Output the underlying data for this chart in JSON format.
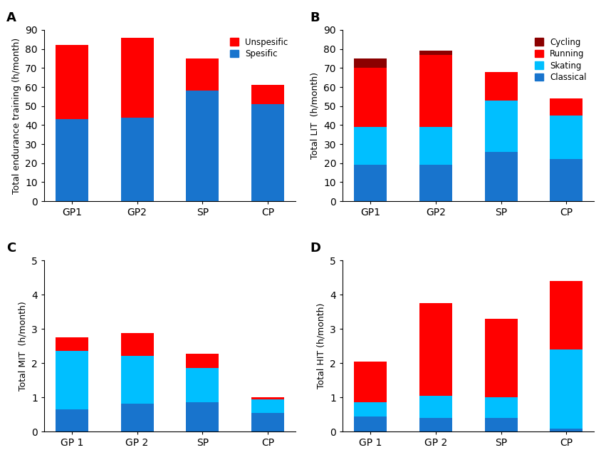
{
  "A": {
    "categories": [
      "GP1",
      "GP2",
      "SP",
      "CP"
    ],
    "specific": [
      43,
      44,
      58,
      51
    ],
    "unspecific": [
      39,
      42,
      17,
      10
    ],
    "ylabel": "Total endurance training (h/month)",
    "ylim": [
      0,
      90
    ],
    "yticks": [
      0,
      10,
      20,
      30,
      40,
      50,
      60,
      70,
      80,
      90
    ],
    "colors": {
      "specific": "#1874CD",
      "unspecific": "#FF0000"
    },
    "label": "A"
  },
  "B": {
    "categories": [
      "GP1",
      "GP2",
      "SP",
      "CP"
    ],
    "classical": [
      19,
      19,
      26,
      22
    ],
    "skating": [
      20,
      20,
      27,
      23
    ],
    "running": [
      31,
      38,
      15,
      9
    ],
    "cycling": [
      5,
      2,
      0,
      0
    ],
    "ylabel": "Total LIT  (h/month)",
    "ylim": [
      0,
      90
    ],
    "yticks": [
      0,
      10,
      20,
      30,
      40,
      50,
      60,
      70,
      80,
      90
    ],
    "colors": {
      "classical": "#1874CD",
      "skating": "#00BFFF",
      "running": "#FF0000",
      "cycling": "#8B0000"
    },
    "label": "B"
  },
  "C": {
    "categories": [
      "GP 1",
      "GP 2",
      "SP",
      "CP"
    ],
    "classical": [
      0.65,
      0.82,
      0.85,
      0.55
    ],
    "skating": [
      1.7,
      1.4,
      1.0,
      0.4
    ],
    "running": [
      0.4,
      0.65,
      0.42,
      0.05
    ],
    "ylabel": "Total MIT  (h/month)",
    "ylim": [
      0,
      5
    ],
    "yticks": [
      0,
      1,
      2,
      3,
      4,
      5
    ],
    "colors": {
      "classical": "#1874CD",
      "skating": "#00BFFF",
      "running": "#FF0000"
    },
    "label": "C"
  },
  "D": {
    "categories": [
      "GP 1",
      "GP 2",
      "SP",
      "CP"
    ],
    "classical": [
      0.45,
      0.4,
      0.4,
      0.1
    ],
    "skating": [
      0.4,
      0.65,
      0.6,
      2.3
    ],
    "running": [
      1.2,
      2.7,
      2.3,
      2.0
    ],
    "ylabel": "Total HIT (h/month)",
    "ylim": [
      0,
      5
    ],
    "yticks": [
      0,
      1,
      2,
      3,
      4,
      5
    ],
    "colors": {
      "classical": "#1874CD",
      "skating": "#00BFFF",
      "running": "#FF0000"
    },
    "label": "D"
  },
  "background_color": "#FFFFFF",
  "bar_width": 0.5
}
